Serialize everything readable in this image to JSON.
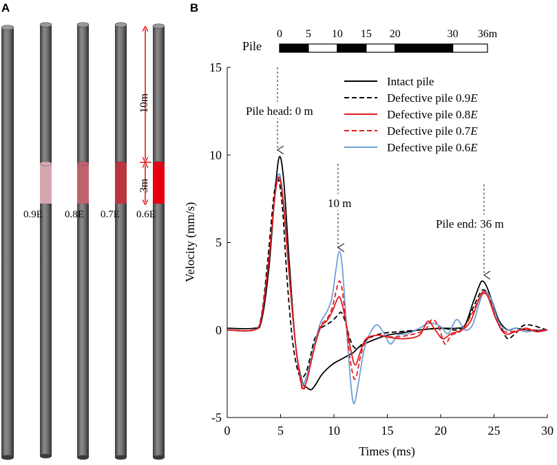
{
  "panel_a": {
    "label": "A",
    "pile_labels": [
      "0.9E",
      "0.8E",
      "0.7E",
      "0.6E"
    ],
    "defect_colors": [
      "#d6a7b0",
      "#c0636e",
      "#b9343e",
      "#e8000f"
    ],
    "dim_top": "10m",
    "dim_defect": "3m",
    "arrow_color": "#e31a1c"
  },
  "panel_b": {
    "label": "B",
    "scale_bar": {
      "title": "Pile",
      "ticks": [
        0,
        5,
        10,
        15,
        20,
        30,
        36
      ],
      "tick_labels": [
        "0",
        "5",
        "10",
        "15",
        "20",
        "30",
        "36m"
      ]
    },
    "annotations": {
      "head": "Pile head: 0 m",
      "defect": "10 m",
      "end": "Pile end: 36 m"
    }
  },
  "chart_data": {
    "type": "line",
    "title": "",
    "xlabel": "Times (ms)",
    "ylabel": "Velocity (mm/s)",
    "xlim": [
      0,
      30
    ],
    "ylim": [
      -5,
      15
    ],
    "xticks": [
      0,
      5,
      10,
      15,
      20,
      25,
      30
    ],
    "yticks": [
      -5,
      0,
      5,
      10,
      15
    ],
    "legend_position": "top-right",
    "series": [
      {
        "name": "Intact pile",
        "legend_main": "Intact pile",
        "legend_italic": "",
        "color": "#000000",
        "dash": "solid",
        "x": [
          0,
          2.5,
          3.2,
          3.9,
          4.5,
          4.9,
          5.3,
          5.8,
          6.4,
          7.0,
          7.5,
          7.9,
          8.3,
          8.8,
          9.4,
          10.0,
          10.6,
          11.2,
          11.8,
          12.3,
          13.2,
          14.0,
          15.0,
          16.5,
          18.0,
          20.0,
          21.5,
          22.3,
          23.0,
          23.6,
          23.9,
          24.3,
          24.9,
          25.5,
          26.3,
          27.0,
          28.0,
          29.0,
          30.0
        ],
        "y": [
          0.1,
          0.1,
          0.5,
          3.5,
          8.0,
          9.9,
          8.5,
          4.0,
          -0.8,
          -2.9,
          -3.3,
          -3.4,
          -3.1,
          -2.6,
          -2.2,
          -1.9,
          -1.7,
          -1.5,
          -1.3,
          -1.0,
          -0.7,
          -0.5,
          -0.3,
          -0.15,
          0.0,
          0.1,
          0.1,
          0.3,
          1.5,
          2.5,
          2.8,
          2.5,
          1.5,
          0.5,
          0.0,
          0.1,
          0.0,
          -0.05,
          0.0
        ]
      },
      {
        "name": "Defective pile 0.9E",
        "legend_main": "Defective pile 0.9",
        "legend_italic": "E",
        "color": "#000000",
        "dash": "dashed",
        "x": [
          0,
          2.5,
          3.2,
          3.8,
          4.4,
          4.8,
          5.2,
          5.6,
          6.1,
          6.6,
          7.0,
          7.4,
          7.8,
          8.2,
          8.8,
          9.3,
          9.8,
          10.3,
          10.7,
          11.1,
          11.5,
          11.9,
          12.3,
          12.8,
          13.5,
          14.5,
          16.0,
          18.0,
          20.0,
          21.5,
          22.3,
          23.0,
          23.6,
          24.0,
          24.5,
          25.1,
          25.8,
          26.3,
          27.0,
          28.0,
          30.0
        ],
        "y": [
          0.0,
          0.0,
          0.8,
          4.0,
          7.8,
          8.6,
          6.8,
          3.0,
          -0.5,
          -2.3,
          -2.7,
          -2.4,
          -1.5,
          -0.5,
          0.1,
          0.3,
          0.5,
          0.8,
          1.0,
          0.4,
          -0.5,
          -1.0,
          -1.0,
          -0.7,
          -0.4,
          -0.2,
          -0.1,
          0.0,
          0.1,
          0.0,
          0.3,
          1.2,
          2.0,
          2.3,
          2.0,
          1.0,
          0.0,
          -0.5,
          -0.2,
          0.3,
          0.0
        ]
      },
      {
        "name": "Defective pile 0.8E",
        "legend_main": "Defective pile 0.8",
        "legend_italic": "E",
        "color": "#e31a1c",
        "dash": "solid",
        "x": [
          0,
          2.5,
          3.2,
          3.9,
          4.5,
          4.9,
          5.3,
          5.8,
          6.4,
          7.0,
          7.4,
          7.8,
          8.3,
          8.8,
          9.3,
          9.8,
          10.2,
          10.5,
          10.8,
          11.2,
          11.6,
          12.0,
          12.5,
          13.0,
          14.0,
          15.0,
          16.5,
          18.0,
          18.8,
          19.5,
          20.2,
          21.0,
          22.0,
          22.8,
          23.5,
          24.0,
          24.5,
          25.2,
          26.0,
          27.0,
          28.0,
          29.0,
          30.0
        ],
        "y": [
          0.0,
          0.0,
          0.7,
          4.0,
          7.8,
          8.7,
          7.0,
          3.2,
          -0.8,
          -3.2,
          -3.0,
          -2.0,
          -0.7,
          0.2,
          0.5,
          1.0,
          1.6,
          1.9,
          1.4,
          0.2,
          -1.2,
          -2.0,
          -1.2,
          -0.5,
          -0.3,
          -0.4,
          -0.5,
          -0.3,
          0.5,
          0.0,
          -0.5,
          -0.2,
          0.0,
          0.5,
          1.6,
          2.2,
          1.8,
          0.6,
          -0.2,
          -0.1,
          0.1,
          -0.1,
          0.0
        ]
      },
      {
        "name": "Defective pile 0.7E",
        "legend_main": "Defective pile 0.7",
        "legend_italic": "E",
        "color": "#e31a1c",
        "dash": "dashed",
        "x": [
          0,
          2.5,
          3.2,
          3.9,
          4.5,
          4.9,
          5.3,
          5.8,
          6.4,
          7.0,
          7.4,
          7.8,
          8.3,
          8.8,
          9.3,
          9.8,
          10.2,
          10.5,
          10.8,
          11.2,
          11.6,
          12.0,
          12.5,
          13.0,
          14.0,
          15.5,
          17.0,
          18.5,
          19.2,
          19.8,
          20.4,
          21.0,
          22.0,
          23.0,
          23.6,
          24.1,
          24.6,
          25.3,
          26.0,
          27.5,
          29.0,
          30.0
        ],
        "y": [
          0.0,
          0.0,
          0.7,
          4.0,
          7.8,
          8.7,
          7.0,
          3.2,
          -0.8,
          -3.3,
          -3.0,
          -2.0,
          -0.7,
          0.3,
          0.6,
          1.2,
          2.2,
          2.8,
          2.2,
          0.0,
          -2.0,
          -2.8,
          -1.5,
          -0.6,
          -0.3,
          -0.4,
          -0.3,
          0.0,
          0.6,
          0.2,
          -0.8,
          -0.3,
          0.0,
          1.0,
          1.8,
          2.1,
          1.7,
          0.5,
          -0.1,
          0.0,
          0.0,
          0.0
        ]
      },
      {
        "name": "Defective pile 0.6E",
        "legend_main": "Defective pile 0.6",
        "legend_italic": "E",
        "color": "#6b9fd8",
        "dash": "solid",
        "x": [
          0,
          2.5,
          3.2,
          3.9,
          4.5,
          4.9,
          5.3,
          5.8,
          6.4,
          7.0,
          7.4,
          7.8,
          8.3,
          8.8,
          9.3,
          9.8,
          10.2,
          10.5,
          10.8,
          11.2,
          11.6,
          11.9,
          12.3,
          12.8,
          13.3,
          14.0,
          14.7,
          15.3,
          16.0,
          17.0,
          18.0,
          19.0,
          20.0,
          20.7,
          21.5,
          22.3,
          23.0,
          23.6,
          24.1,
          24.7,
          25.4,
          26.2,
          27.0,
          28.0,
          29.0,
          30.0
        ],
        "y": [
          0.0,
          0.0,
          0.7,
          4.0,
          7.8,
          8.9,
          7.2,
          3.3,
          -0.8,
          -3.0,
          -2.7,
          -1.8,
          -0.5,
          0.5,
          1.0,
          1.8,
          3.5,
          4.5,
          3.5,
          0.0,
          -3.2,
          -4.2,
          -3.0,
          -1.2,
          -0.3,
          0.3,
          -0.2,
          -0.8,
          -0.3,
          -0.2,
          0.1,
          0.4,
          0.2,
          -0.2,
          0.6,
          0.0,
          0.3,
          1.5,
          2.2,
          1.8,
          0.5,
          0.0,
          0.1,
          -0.1,
          0.0,
          0.0
        ]
      }
    ]
  }
}
